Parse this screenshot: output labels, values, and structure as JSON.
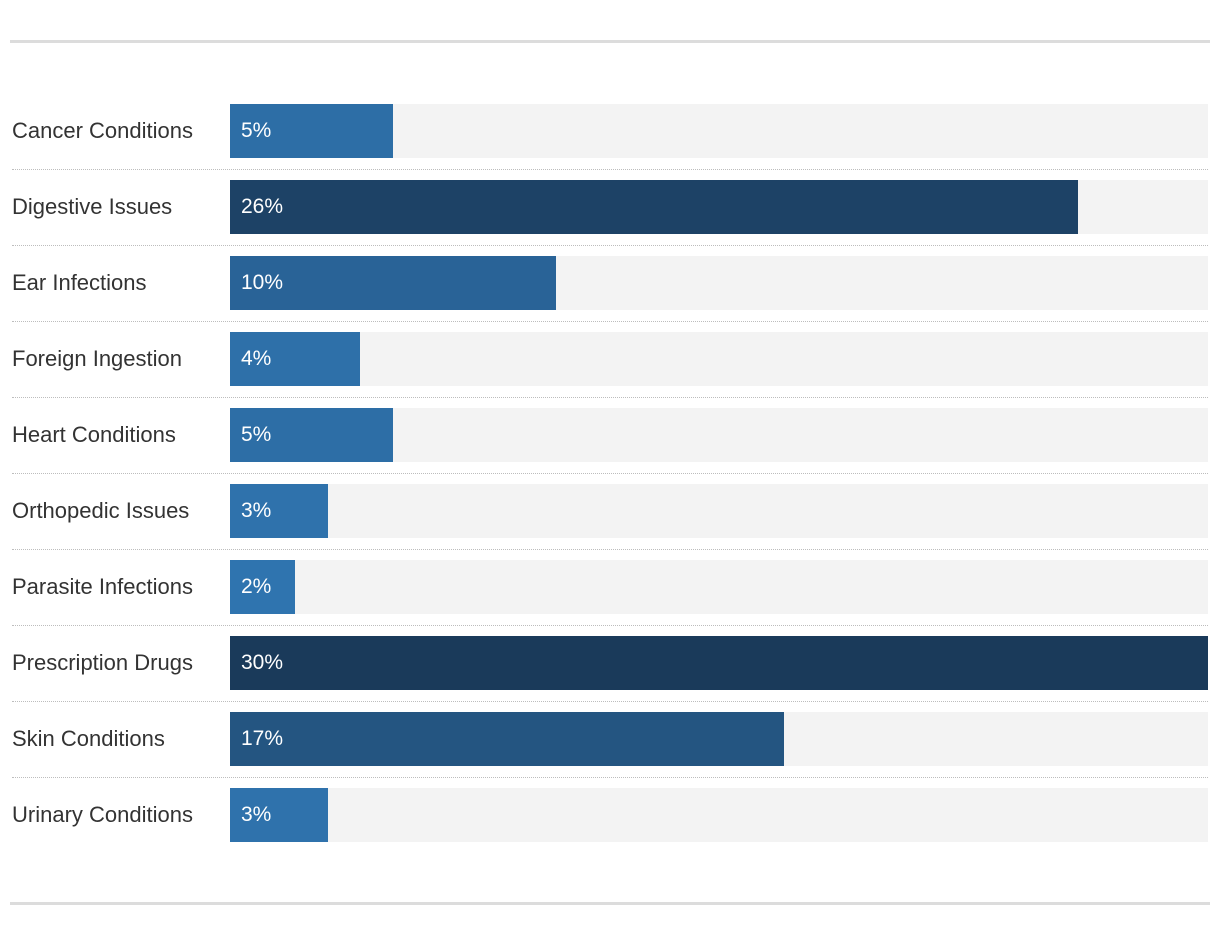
{
  "chart_data": {
    "type": "bar",
    "orientation": "horizontal",
    "title": "",
    "xlabel": "",
    "ylabel": "",
    "xlim": [
      0,
      30
    ],
    "categories": [
      "Cancer Conditions",
      "Digestive Issues",
      "Ear Infections",
      "Foreign Ingestion",
      "Heart Conditions",
      "Orthopedic Issues",
      "Parasite Infections",
      "Prescription Drugs",
      "Skin Conditions",
      "Urinary Conditions"
    ],
    "values": [
      5,
      26,
      10,
      4,
      5,
      3,
      2,
      30,
      17,
      3
    ],
    "value_labels": [
      "5%",
      "26%",
      "10%",
      "4%",
      "5%",
      "3%",
      "2%",
      "30%",
      "17%",
      "3%"
    ],
    "colors": {
      "track": "#f3f3f3",
      "bar_light": "#3178b5",
      "bar_dark": "#1a3a5a",
      "label_text": "#333333",
      "value_text": "#ffffff"
    }
  }
}
